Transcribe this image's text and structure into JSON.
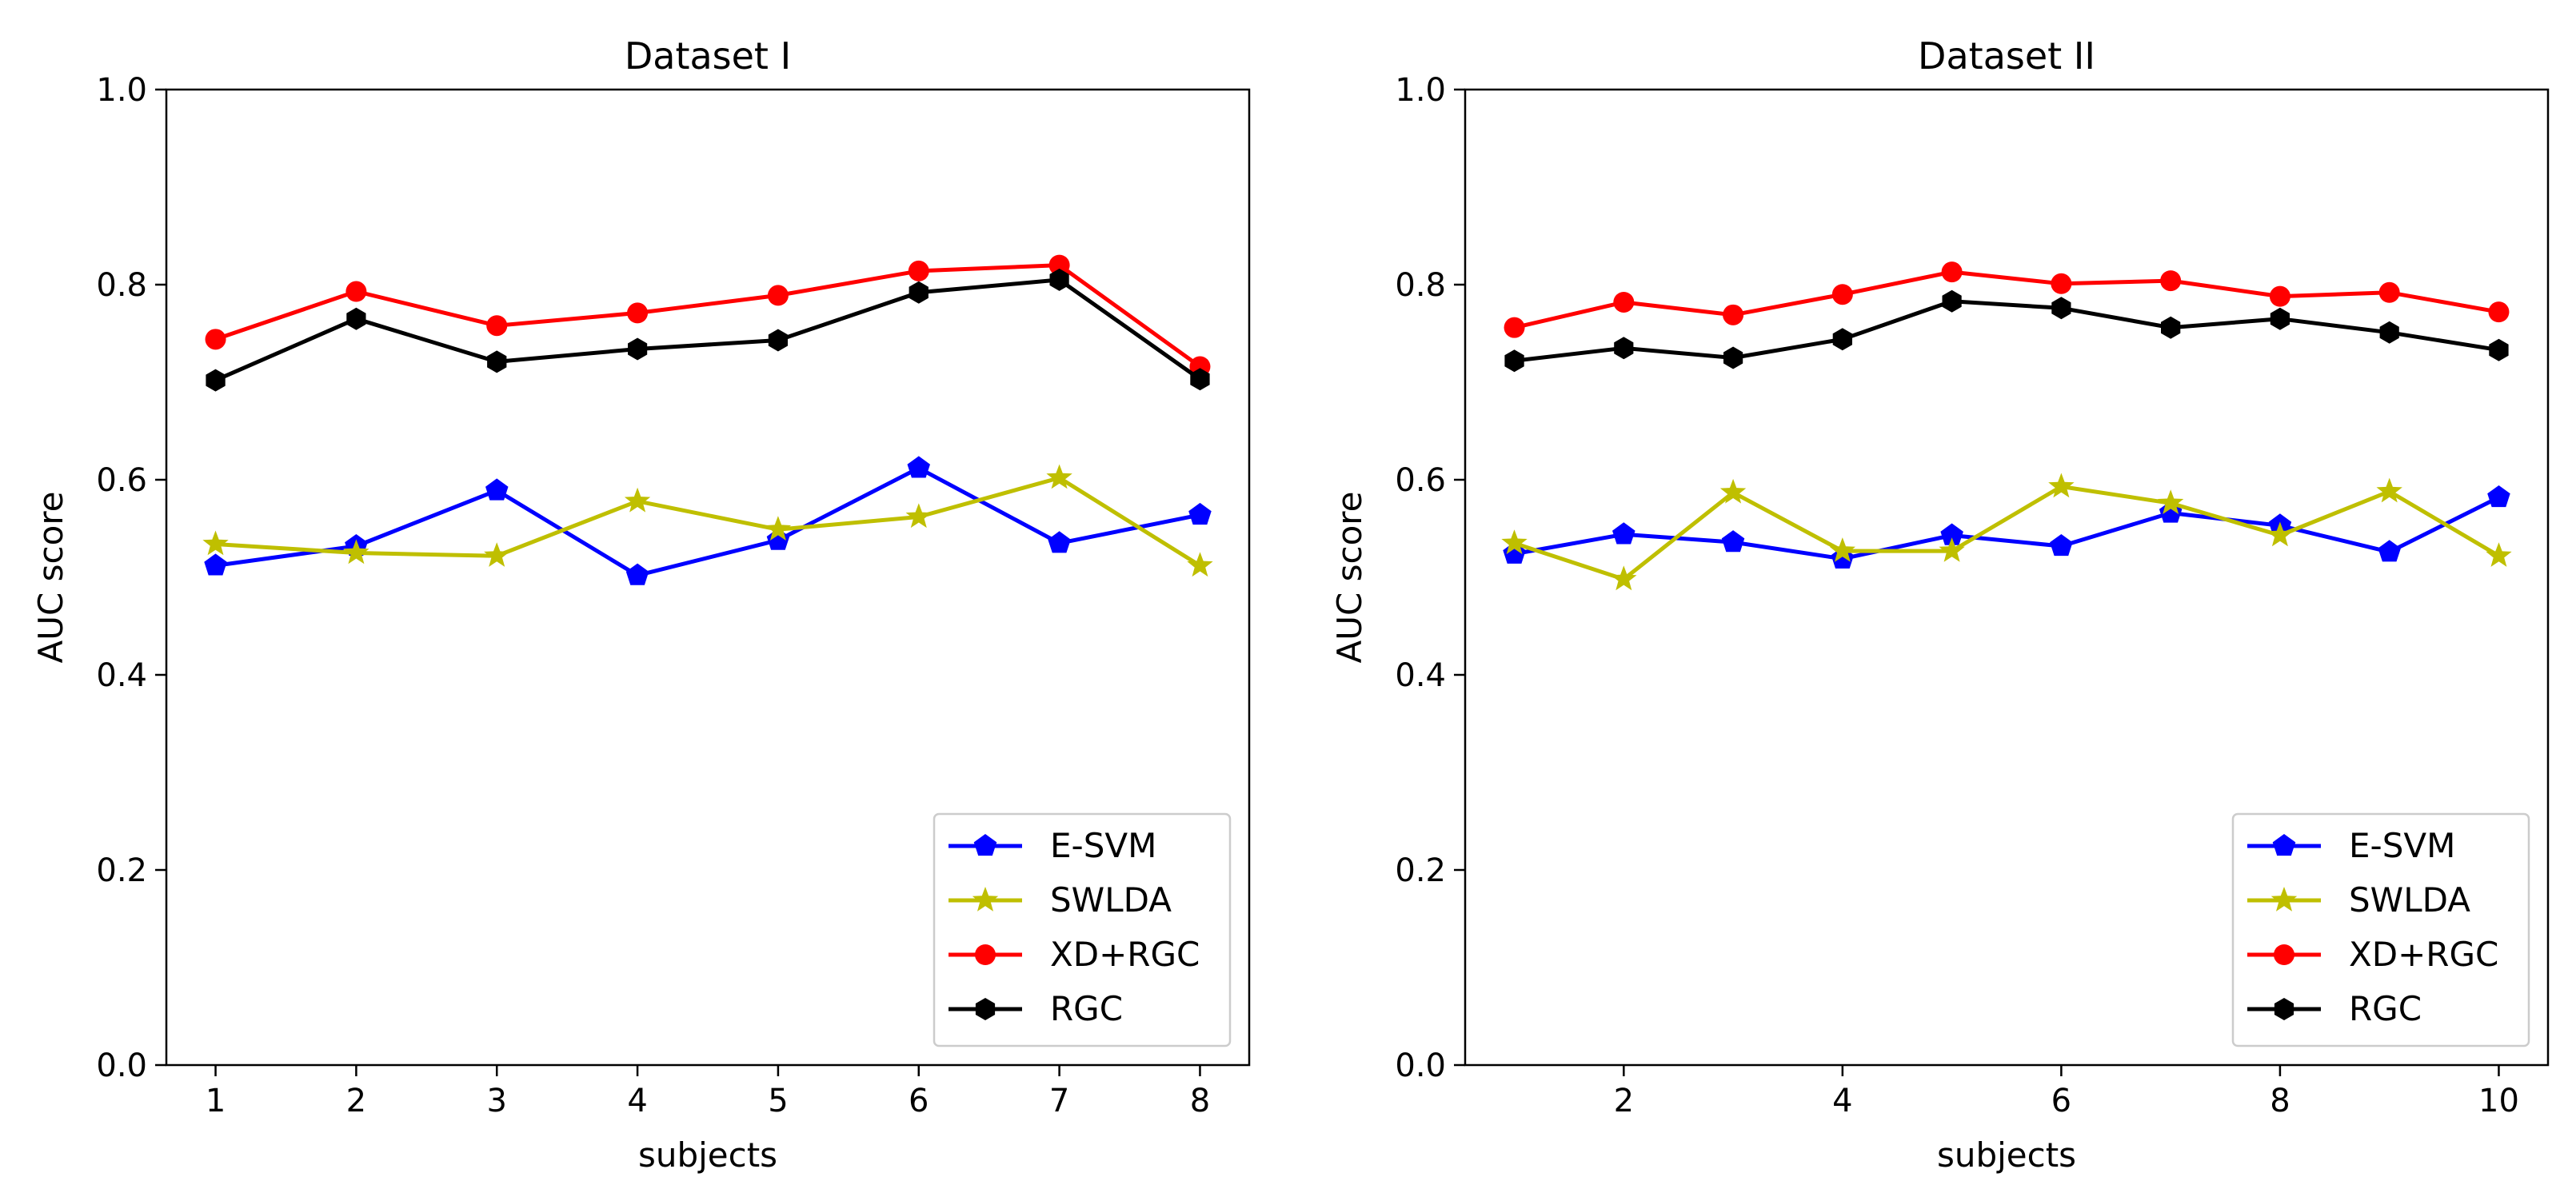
{
  "chart_data": [
    {
      "type": "line",
      "title": "Dataset I",
      "xlabel": "subjects",
      "ylabel": "AUC score",
      "xlim": [
        0.65,
        8.35
      ],
      "ylim": [
        0.0,
        1.0
      ],
      "xticks": [
        1,
        2,
        3,
        4,
        5,
        6,
        7,
        8
      ],
      "yticks": [
        0.0,
        0.2,
        0.4,
        0.6,
        0.8,
        1.0
      ],
      "grid": false,
      "legend_position": "lower-right",
      "x": [
        1,
        2,
        3,
        4,
        5,
        6,
        7,
        8
      ],
      "series": [
        {
          "name": "E-SVM",
          "color": "#0000ff",
          "marker": "pentagon",
          "values": [
            0.512,
            0.532,
            0.589,
            0.502,
            0.538,
            0.612,
            0.535,
            0.564
          ]
        },
        {
          "name": "SWLDA",
          "color": "#bfbf00",
          "marker": "star",
          "values": [
            0.534,
            0.525,
            0.522,
            0.578,
            0.549,
            0.562,
            0.602,
            0.512
          ]
        },
        {
          "name": "XD+RGC",
          "color": "#ff0000",
          "marker": "circle",
          "values": [
            0.744,
            0.793,
            0.758,
            0.771,
            0.789,
            0.814,
            0.82,
            0.716
          ]
        },
        {
          "name": "RGC",
          "color": "#000000",
          "marker": "hexagon",
          "values": [
            0.702,
            0.765,
            0.721,
            0.734,
            0.743,
            0.792,
            0.805,
            0.703
          ]
        }
      ]
    },
    {
      "type": "line",
      "title": "Dataset II",
      "xlabel": "subjects",
      "ylabel": "AUC score",
      "xlim": [
        0.55,
        10.45
      ],
      "ylim": [
        0.0,
        1.0
      ],
      "xticks": [
        2,
        4,
        6,
        8,
        10
      ],
      "yticks": [
        0.0,
        0.2,
        0.4,
        0.6,
        0.8,
        1.0
      ],
      "grid": false,
      "legend_position": "lower-right",
      "x": [
        1,
        2,
        3,
        4,
        5,
        6,
        7,
        8,
        9,
        10
      ],
      "series": [
        {
          "name": "E-SVM",
          "color": "#0000ff",
          "marker": "pentagon",
          "values": [
            0.524,
            0.544,
            0.536,
            0.519,
            0.543,
            0.532,
            0.566,
            0.553,
            0.526,
            0.582
          ]
        },
        {
          "name": "SWLDA",
          "color": "#bfbf00",
          "marker": "star",
          "values": [
            0.535,
            0.498,
            0.587,
            0.527,
            0.527,
            0.593,
            0.576,
            0.543,
            0.588,
            0.522
          ]
        },
        {
          "name": "XD+RGC",
          "color": "#ff0000",
          "marker": "circle",
          "values": [
            0.756,
            0.782,
            0.769,
            0.79,
            0.813,
            0.801,
            0.804,
            0.788,
            0.792,
            0.772
          ]
        },
        {
          "name": "RGC",
          "color": "#000000",
          "marker": "hexagon",
          "values": [
            0.722,
            0.735,
            0.725,
            0.744,
            0.783,
            0.776,
            0.756,
            0.765,
            0.751,
            0.733
          ]
        }
      ]
    }
  ]
}
